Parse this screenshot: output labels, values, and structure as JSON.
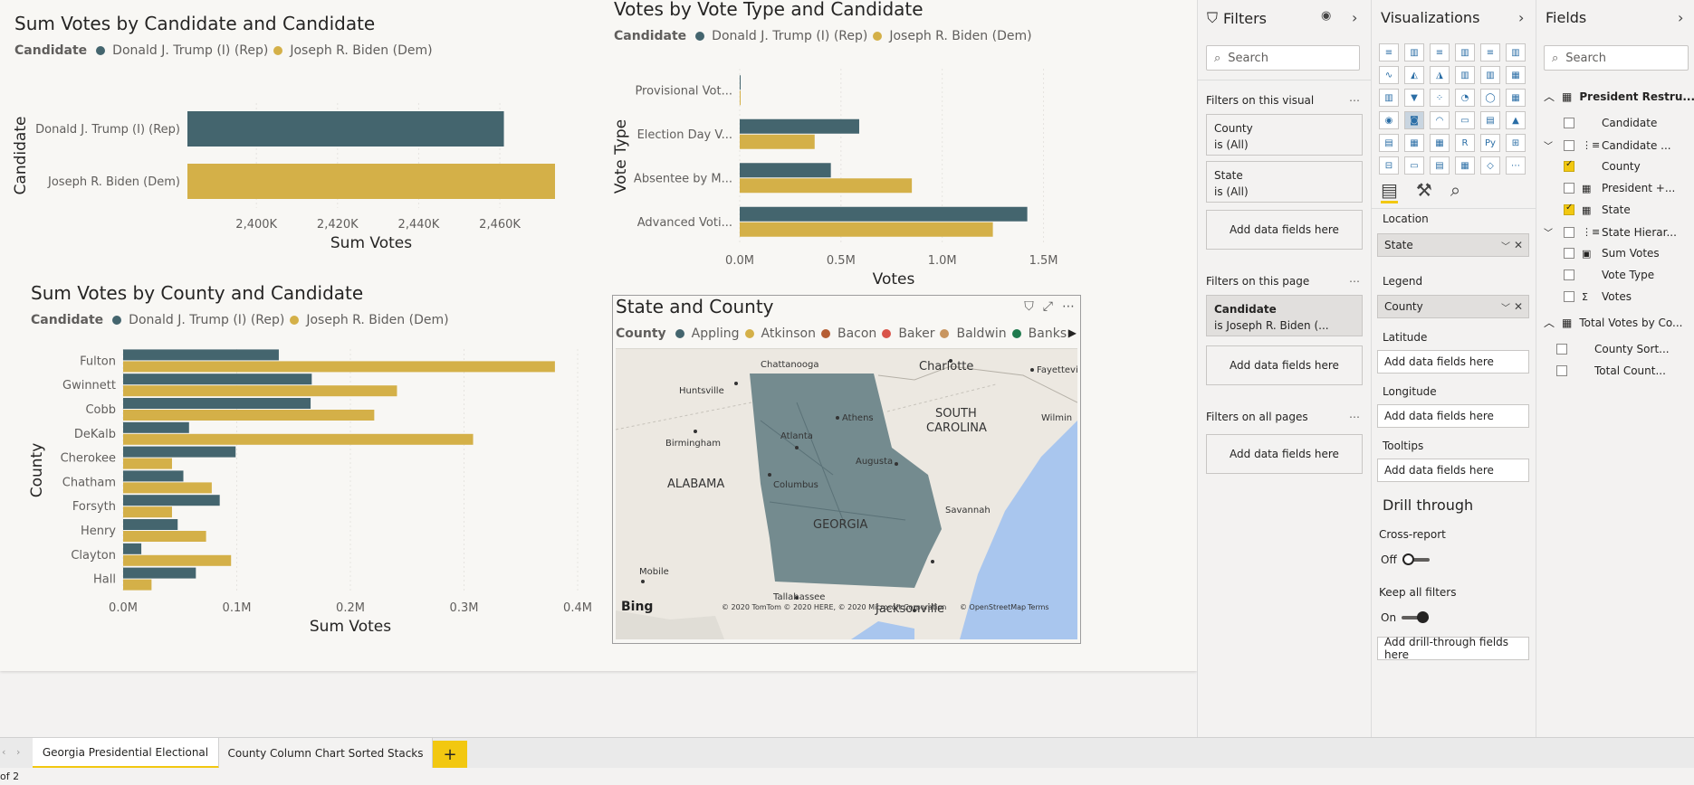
{
  "colors": {
    "trump": "#44656e",
    "biden": "#d4b048",
    "accent": "#f2c811"
  },
  "chart_data": [
    {
      "type": "bar",
      "orientation": "horizontal",
      "title": "Sum Votes by Candidate and Candidate",
      "legend_title": "Candidate",
      "categories": [
        "Donald J. Trump (I) (Rep)",
        "Joseph R. Biden (Dem)"
      ],
      "series": [
        {
          "name": "Donald J. Trump (I) (Rep)",
          "values": [
            2461000,
            null
          ]
        },
        {
          "name": "Joseph R. Biden (Dem)",
          "values": [
            null,
            2473600
          ]
        }
      ],
      "xlabel": "Sum Votes",
      "ylabel": "Candidate",
      "xlim": [
        2383000,
        2473600
      ],
      "xticks": [
        "2,400K",
        "2,420K",
        "2,440K",
        "2,460K"
      ],
      "xtick_values": [
        2400000,
        2420000,
        2440000,
        2460000
      ]
    },
    {
      "type": "bar",
      "orientation": "horizontal",
      "title": "Votes by Vote Type and Candidate",
      "legend_title": "Candidate",
      "categories": [
        "Provisional Vot...",
        "Election Day V...",
        "Absentee by M...",
        "Advanced Voti..."
      ],
      "series": [
        {
          "name": "Donald J. Trump (I) (Rep)",
          "values": [
            3000,
            590000,
            450000,
            1420000
          ]
        },
        {
          "name": "Joseph R. Biden (Dem)",
          "values": [
            4000,
            370000,
            850000,
            1250000
          ]
        }
      ],
      "xlabel": "Votes",
      "ylabel": "Vote Type",
      "xlim": [
        0,
        1520000
      ],
      "xticks": [
        "0.0M",
        "0.5M",
        "1.0M",
        "1.5M"
      ],
      "xtick_values": [
        0,
        500000,
        1000000,
        1500000
      ]
    },
    {
      "type": "bar",
      "orientation": "horizontal",
      "title": "Sum Votes by County and Candidate",
      "legend_title": "Candidate",
      "categories": [
        "Fulton",
        "Gwinnett",
        "Cobb",
        "DeKalb",
        "Cherokee",
        "Chatham",
        "Forsyth",
        "Henry",
        "Clayton",
        "Hall"
      ],
      "series": [
        {
          "name": "Donald J. Trump (I) (Rep)",
          "values": [
            137000,
            166000,
            165000,
            58000,
            99000,
            53000,
            85000,
            48000,
            16000,
            64000
          ]
        },
        {
          "name": "Joseph R. Biden (Dem)",
          "values": [
            380000,
            241000,
            221000,
            308000,
            43000,
            78000,
            43000,
            73000,
            95000,
            25000
          ]
        }
      ],
      "xlabel": "Sum Votes",
      "ylabel": "County",
      "xlim": [
        0,
        400000
      ],
      "xticks": [
        "0.0M",
        "0.1M",
        "0.2M",
        "0.3M",
        "0.4M"
      ],
      "xtick_values": [
        0,
        100000,
        200000,
        300000,
        400000
      ]
    }
  ],
  "map": {
    "title": "State and County",
    "legend_title": "County",
    "legend": [
      {
        "name": "Appling",
        "color": "#44656e"
      },
      {
        "name": "Atkinson",
        "color": "#d4b048"
      },
      {
        "name": "Bacon",
        "color": "#b55e34"
      },
      {
        "name": "Baker",
        "color": "#d9544a"
      },
      {
        "name": "Baldwin",
        "color": "#c8955f"
      },
      {
        "name": "Banks",
        "color": "#1f7a4d"
      }
    ],
    "labels": {
      "charlotte": "Charlotte",
      "chattanooga": "Chattanooga",
      "fayetteville": "Fayetteville",
      "huntsville": "Huntsville",
      "athens": "Athens",
      "sc": "SOUTH",
      "sc2": "CAROLINA",
      "wilmin": "Wilmin",
      "birmingham": "Birmingham",
      "atlanta": "Atlanta",
      "augusta": "Augusta",
      "alabama": "ALABAMA",
      "columbus": "Columbus",
      "savannah": "Savannah",
      "georgia": "GEORGIA",
      "mobile": "Mobile",
      "tallahassee": "Tallahassee",
      "jacksonville": "Jacksonville"
    },
    "bing": "Bing",
    "copyright": "© 2020 TomTom © 2020 HERE, © 2020 Microsoft Corporation",
    "osm": "© OpenStreetMap",
    "terms": "Terms"
  },
  "filters": {
    "title": "Filters",
    "search": "Search",
    "on_visual": "Filters on this visual",
    "cards_visual": [
      {
        "name": "County",
        "value": "is (All)"
      },
      {
        "name": "State",
        "value": "is (All)"
      }
    ],
    "add": "Add data fields here",
    "on_page": "Filters on this page",
    "card_page": {
      "name": "Candidate",
      "value": "is Joseph R. Biden (..."
    },
    "on_all": "Filters on all pages"
  },
  "viz": {
    "title": "Visualizations",
    "location": "Location",
    "location_val": "State",
    "legend": "Legend",
    "legend_val": "County",
    "latitude": "Latitude",
    "longitude": "Longitude",
    "tooltips": "Tooltips",
    "add": "Add data fields here",
    "drill": "Drill through",
    "cross": "Cross-report",
    "cross_val": "Off",
    "keep": "Keep all filters",
    "keep_val": "On",
    "add_drill": "Add drill-through fields here",
    "icons": [
      "stacked-bar",
      "stacked-column",
      "clustered-bar",
      "clustered-column",
      "100-bar",
      "100-column",
      "line",
      "area",
      "stacked-area",
      "line-column",
      "line-clustered",
      "ribbon",
      "waterfall",
      "funnel",
      "scatter",
      "pie",
      "donut",
      "treemap",
      "map",
      "filled-map",
      "gauge",
      "card",
      "multi-row-card",
      "kpi",
      "slicer",
      "table",
      "matrix",
      "r-visual",
      "python-visual",
      "key-influencers",
      "decomposition",
      "qna",
      "smart-narrative",
      "paginated",
      "power-apps",
      "more"
    ],
    "icon_glyphs": [
      "≡",
      "▥",
      "≡",
      "▥",
      "≡",
      "▥",
      "∿",
      "◭",
      "◮",
      "▥",
      "▥",
      "▦",
      "▥",
      "▼",
      "⁘",
      "◔",
      "◯",
      "▦",
      "◉",
      "◙",
      "◠",
      "▭",
      "▤",
      "▲",
      "▤",
      "▦",
      "▦",
      "R",
      "Py",
      "⊞",
      "⊟",
      "▭",
      "▤",
      "▦",
      "◇",
      "⋯"
    ]
  },
  "fields": {
    "title": "Fields",
    "search": "Search",
    "table1": "President Restru...",
    "items": [
      {
        "label": "Candidate",
        "checked": false,
        "indent": 1,
        "icon": ""
      },
      {
        "label": "Candidate ...",
        "checked": false,
        "indent": 1,
        "icon": "hier",
        "expand": "﹀"
      },
      {
        "label": "County",
        "checked": true,
        "indent": 1,
        "icon": ""
      },
      {
        "label": "President +...",
        "checked": false,
        "indent": 1,
        "icon": "tbl"
      },
      {
        "label": "State",
        "checked": true,
        "indent": 1,
        "icon": "tbl"
      },
      {
        "label": "State Hierar...",
        "checked": false,
        "indent": 1,
        "icon": "hier",
        "expand": "﹀"
      },
      {
        "label": "Sum Votes",
        "checked": false,
        "indent": 1,
        "icon": "calc"
      },
      {
        "label": "Vote Type",
        "checked": false,
        "indent": 1,
        "icon": ""
      },
      {
        "label": "Votes",
        "checked": false,
        "indent": 1,
        "icon": "sum"
      }
    ],
    "table2": "Total Votes by Co...",
    "items2": [
      {
        "label": "County Sort...",
        "checked": false
      },
      {
        "label": "Total Count...",
        "checked": false
      }
    ]
  },
  "tabs": [
    {
      "label": "Georgia Presidential Electional",
      "active": true
    },
    {
      "label": "County Column Chart Sorted Stacks",
      "active": false
    }
  ],
  "status": "of 2"
}
